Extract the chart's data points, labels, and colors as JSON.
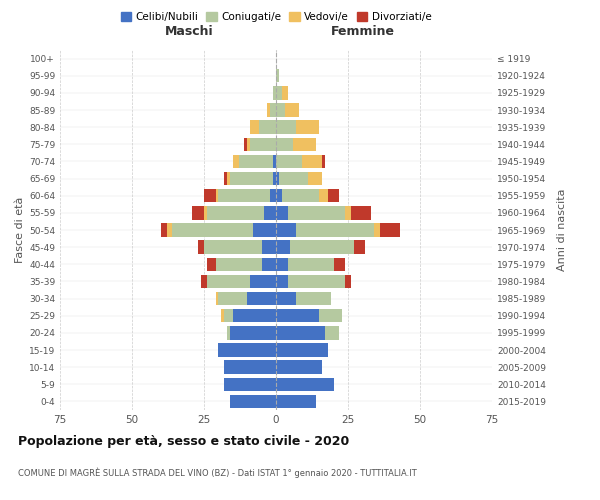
{
  "age_groups": [
    "0-4",
    "5-9",
    "10-14",
    "15-19",
    "20-24",
    "25-29",
    "30-34",
    "35-39",
    "40-44",
    "45-49",
    "50-54",
    "55-59",
    "60-64",
    "65-69",
    "70-74",
    "75-79",
    "80-84",
    "85-89",
    "90-94",
    "95-99",
    "100+"
  ],
  "birth_years": [
    "2015-2019",
    "2010-2014",
    "2005-2009",
    "2000-2004",
    "1995-1999",
    "1990-1994",
    "1985-1989",
    "1980-1984",
    "1975-1979",
    "1970-1974",
    "1965-1969",
    "1960-1964",
    "1955-1959",
    "1950-1954",
    "1945-1949",
    "1940-1944",
    "1935-1939",
    "1930-1934",
    "1925-1929",
    "1920-1924",
    "≤ 1919"
  ],
  "male": {
    "celibi": [
      16,
      18,
      18,
      20,
      16,
      15,
      10,
      9,
      5,
      5,
      8,
      4,
      2,
      1,
      1,
      0,
      0,
      0,
      0,
      0,
      0
    ],
    "coniugati": [
      0,
      0,
      0,
      0,
      1,
      3,
      10,
      15,
      16,
      20,
      28,
      20,
      18,
      15,
      12,
      9,
      6,
      2,
      1,
      0,
      0
    ],
    "vedovi": [
      0,
      0,
      0,
      0,
      0,
      1,
      1,
      0,
      0,
      0,
      2,
      1,
      1,
      1,
      2,
      1,
      3,
      1,
      0,
      0,
      0
    ],
    "divorziati": [
      0,
      0,
      0,
      0,
      0,
      0,
      0,
      2,
      3,
      2,
      2,
      4,
      4,
      1,
      0,
      1,
      0,
      0,
      0,
      0,
      0
    ]
  },
  "female": {
    "nubili": [
      14,
      20,
      16,
      18,
      17,
      15,
      7,
      4,
      4,
      5,
      7,
      4,
      2,
      1,
      0,
      0,
      0,
      0,
      0,
      0,
      0
    ],
    "coniugate": [
      0,
      0,
      0,
      0,
      5,
      8,
      12,
      20,
      16,
      22,
      27,
      20,
      13,
      10,
      9,
      6,
      7,
      3,
      2,
      1,
      0
    ],
    "vedove": [
      0,
      0,
      0,
      0,
      0,
      0,
      0,
      0,
      0,
      0,
      2,
      2,
      3,
      5,
      7,
      8,
      8,
      5,
      2,
      0,
      0
    ],
    "divorziate": [
      0,
      0,
      0,
      0,
      0,
      0,
      0,
      2,
      4,
      4,
      7,
      7,
      4,
      0,
      1,
      0,
      0,
      0,
      0,
      0,
      0
    ]
  },
  "color_celibi": "#4472c4",
  "color_coniugati": "#b5c9a0",
  "color_vedovi": "#f0c060",
  "color_divorziati": "#c0392b",
  "title": "Popolazione per età, sesso e stato civile - 2020",
  "subtitle": "COMUNE DI MAGRÈ SULLA STRADA DEL VINO (BZ) - Dati ISTAT 1° gennaio 2020 - TUTTITALIA.IT",
  "xlabel_left": "Maschi",
  "xlabel_right": "Femmine",
  "ylabel_left": "Fasce di età",
  "ylabel_right": "Anni di nascita",
  "xlim": 75,
  "legend_labels": [
    "Celibi/Nubili",
    "Coniugati/e",
    "Vedovi/e",
    "Divorziati/e"
  ],
  "background_color": "#ffffff",
  "grid_color": "#cccccc"
}
